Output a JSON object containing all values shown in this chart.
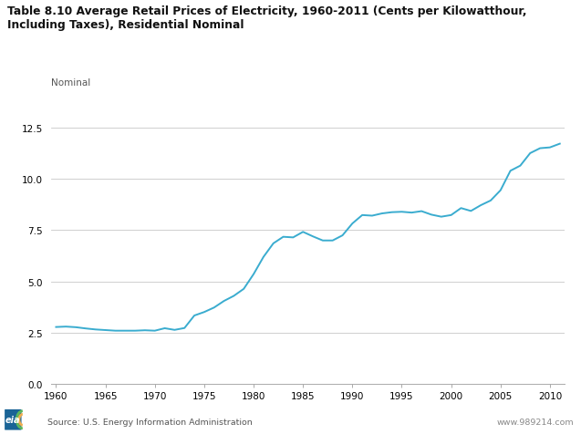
{
  "title_line1": "Table 8.10 Average Retail Prices of Electricity, 1960-2011 (Cents per Kilowatthour,",
  "title_line2": "Including Taxes), Residential Nominal",
  "ylabel": "Nominal",
  "source": "Source: U.S. Energy Information Administration",
  "website": "www.989214.com",
  "line_color": "#3AACCF",
  "background_color": "#FFFFFF",
  "grid_color": "#C8C8C8",
  "ylim": [
    0.0,
    14.0
  ],
  "yticks": [
    0.0,
    2.5,
    5.0,
    7.5,
    10.0,
    12.5
  ],
  "xlim": [
    1959.5,
    2011.5
  ],
  "xticks": [
    1960,
    1965,
    1970,
    1975,
    1980,
    1985,
    1990,
    1995,
    2000,
    2005,
    2010
  ],
  "years": [
    1960,
    1961,
    1962,
    1963,
    1964,
    1965,
    1966,
    1967,
    1968,
    1969,
    1970,
    1971,
    1972,
    1973,
    1974,
    1975,
    1976,
    1977,
    1978,
    1979,
    1980,
    1981,
    1982,
    1983,
    1984,
    1985,
    1986,
    1987,
    1988,
    1989,
    1990,
    1991,
    1992,
    1993,
    1994,
    1995,
    1996,
    1997,
    1998,
    1999,
    2000,
    2001,
    2002,
    2003,
    2004,
    2005,
    2006,
    2007,
    2008,
    2009,
    2010,
    2011
  ],
  "values": [
    2.78,
    2.8,
    2.77,
    2.71,
    2.66,
    2.63,
    2.6,
    2.6,
    2.6,
    2.62,
    2.6,
    2.72,
    2.64,
    2.73,
    3.34,
    3.51,
    3.73,
    4.05,
    4.3,
    4.64,
    5.36,
    6.2,
    6.86,
    7.18,
    7.15,
    7.42,
    7.2,
    7.0,
    7.0,
    7.25,
    7.83,
    8.24,
    8.21,
    8.32,
    8.38,
    8.4,
    8.36,
    8.43,
    8.26,
    8.16,
    8.24,
    8.58,
    8.44,
    8.72,
    8.95,
    9.45,
    10.4,
    10.65,
    11.26,
    11.5,
    11.54,
    11.72
  ]
}
